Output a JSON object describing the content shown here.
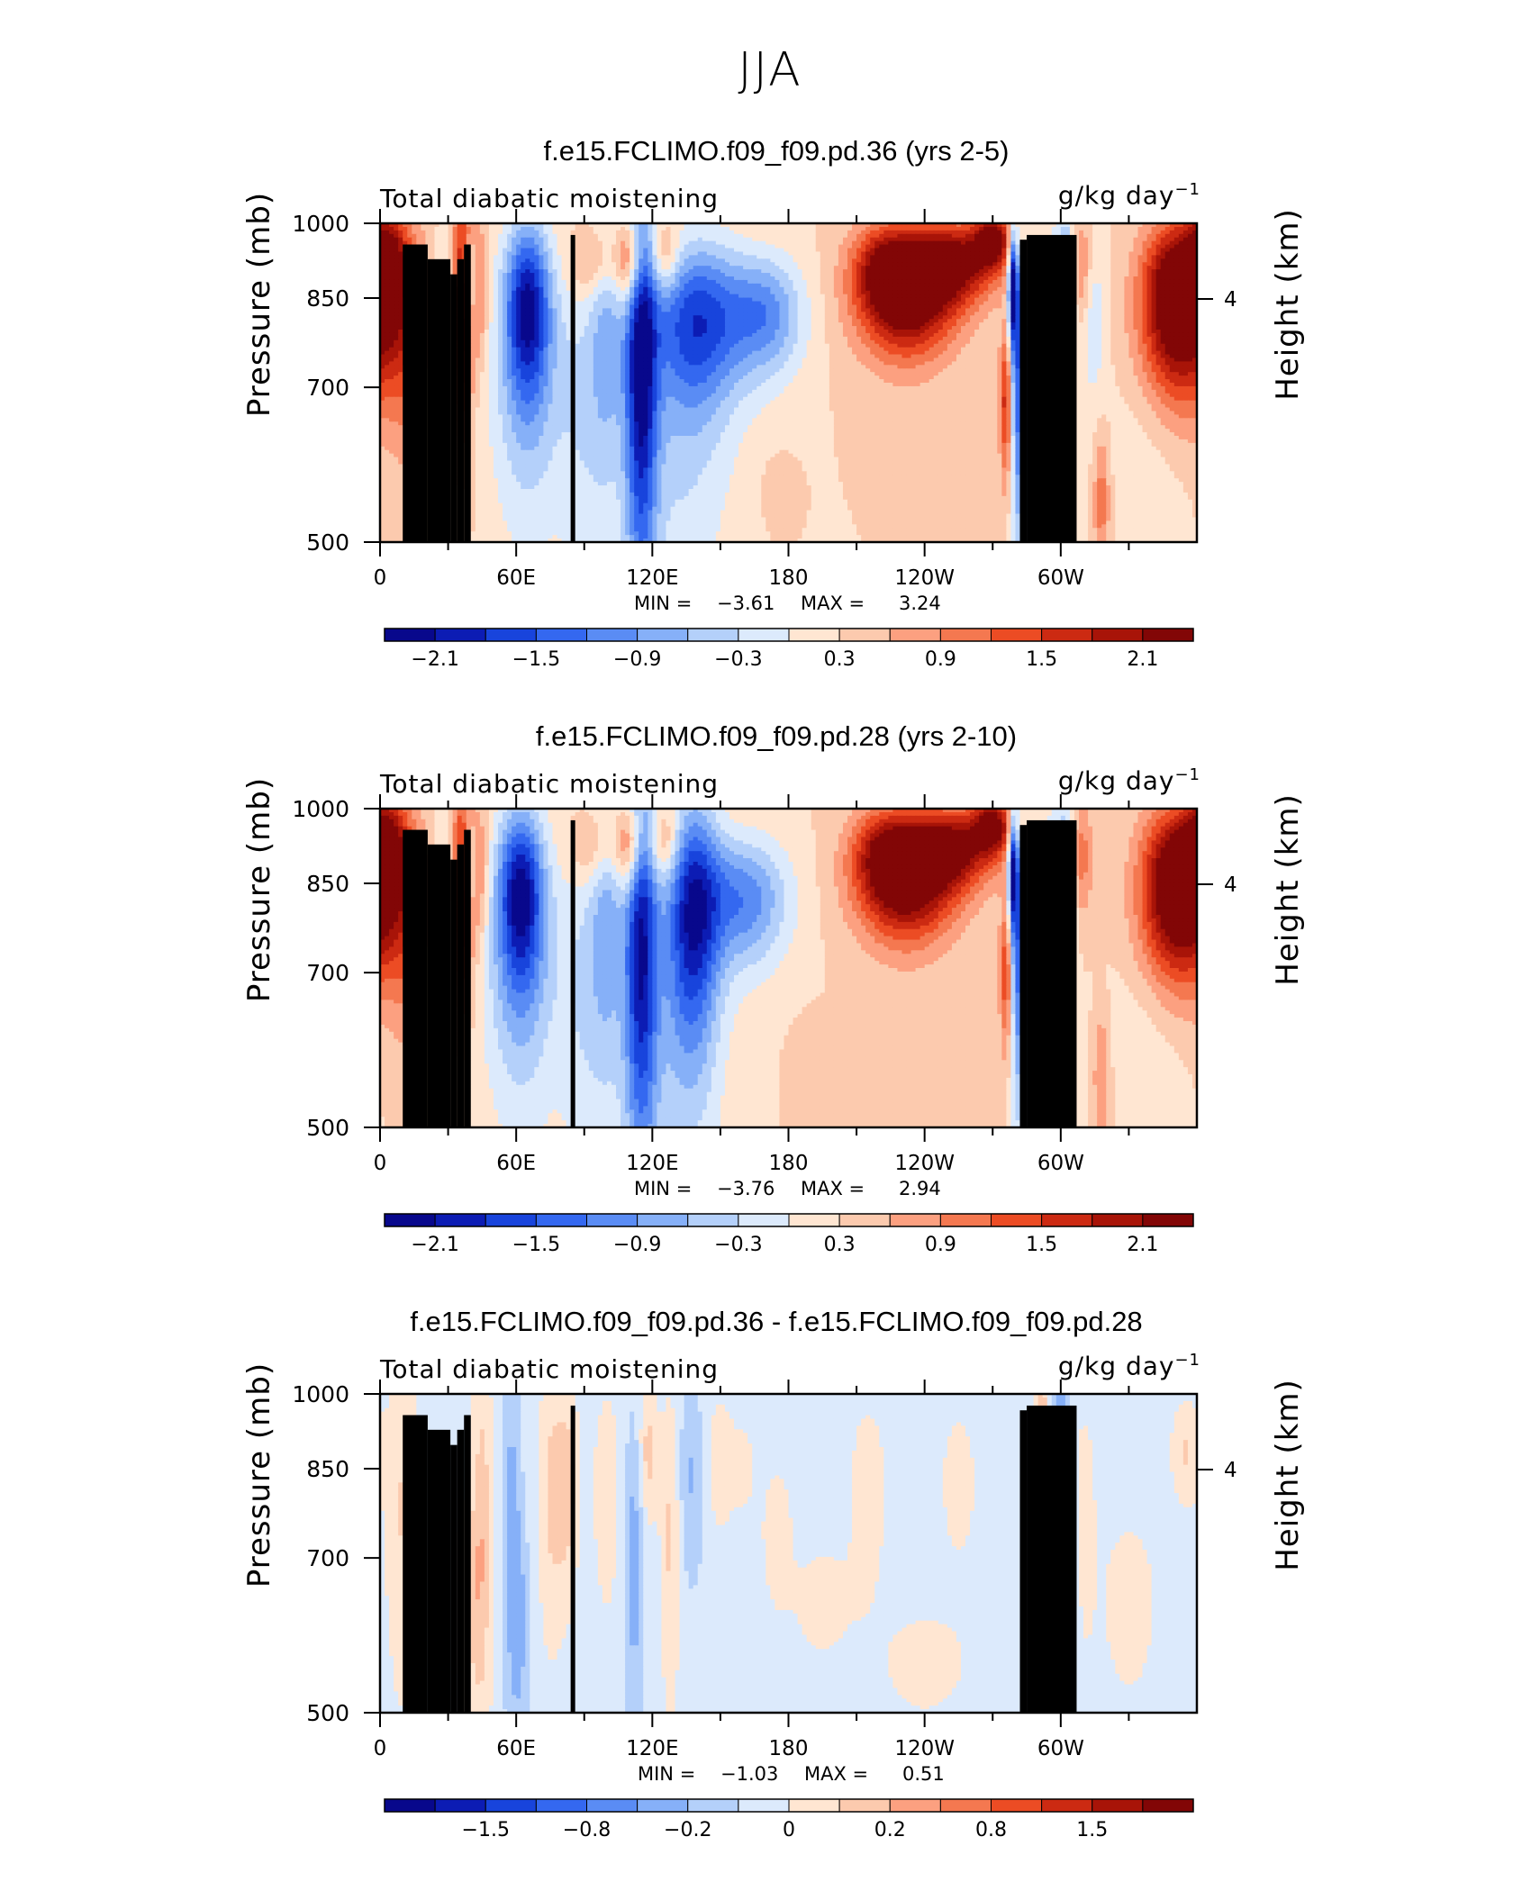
{
  "page_title": "JJA",
  "chart_data": [
    {
      "type": "heatmap",
      "title": "f.e15.FCLIMO.f09_f09.pd.36 (yrs 2-5)",
      "variable": "Total diabatic moistening",
      "units": "g/kg day",
      "units_exponent": "−1",
      "ylabel": "Pressure (mb)",
      "ylabel_right": "Height (km)",
      "x_ticks": [
        "0",
        "60E",
        "120E",
        "180",
        "120W",
        "60W"
      ],
      "y_ticks": [
        "500",
        "700",
        "850",
        "1000"
      ],
      "y_right_ticks": [
        "4"
      ],
      "xlim": [
        0,
        360
      ],
      "ylim": [
        1000,
        500
      ],
      "min_label": "MIN =",
      "min_value": "−3.61",
      "max_label": "MAX =",
      "max_value": "3.24",
      "colorbar_labels": [
        "−2.1",
        "−1.5",
        "−0.9",
        "−0.3",
        "0.3",
        "0.9",
        "1.5",
        "2.1"
      ],
      "blobs": [
        {
          "lon": 13,
          "p": 800,
          "v": 0.75,
          "sx": 7,
          "sy": 140
        },
        {
          "lon": 3,
          "p": 915,
          "v": 1.5,
          "sx": 6,
          "sy": 80
        },
        {
          "lon": 28,
          "p": 740,
          "v": -0.7,
          "sx": 4,
          "sy": 130
        },
        {
          "lon": 36,
          "p": 830,
          "v": 1.9,
          "sx": 3,
          "sy": 150
        },
        {
          "lon": 43,
          "p": 870,
          "v": 1.0,
          "sx": 3,
          "sy": 90
        },
        {
          "lon": 40,
          "p": 880,
          "v": -1.2,
          "sx": 2.5,
          "sy": 60
        },
        {
          "lon": 65,
          "p": 840,
          "v": -2.1,
          "sx": 7,
          "sy": 110
        },
        {
          "lon": 65,
          "p": 700,
          "v": -0.8,
          "sx": 12,
          "sy": 150
        },
        {
          "lon": 90,
          "p": 680,
          "v": -0.5,
          "sx": 8,
          "sy": 170
        },
        {
          "lon": 100,
          "p": 800,
          "v": -0.8,
          "sx": 5,
          "sy": 150
        },
        {
          "lon": 115,
          "p": 750,
          "v": -2.3,
          "sx": 5,
          "sy": 220
        },
        {
          "lon": 110,
          "p": 920,
          "v": 1.3,
          "sx": 4,
          "sy": 60
        },
        {
          "lon": 125,
          "p": 930,
          "v": 0.8,
          "sx": 5,
          "sy": 50
        },
        {
          "lon": 140,
          "p": 810,
          "v": -1.8,
          "sx": 14,
          "sy": 100
        },
        {
          "lon": 170,
          "p": 820,
          "v": -1.3,
          "sx": 12,
          "sy": 75
        },
        {
          "lon": 130,
          "p": 620,
          "v": -0.6,
          "sx": 18,
          "sy": 170
        },
        {
          "lon": 95,
          "p": 920,
          "v": 0.7,
          "sx": 8,
          "sy": 50
        },
        {
          "lon": 175,
          "p": 560,
          "v": 0.2,
          "sx": 5,
          "sy": 30
        },
        {
          "lon": 232,
          "p": 855,
          "v": 2.4,
          "sx": 15,
          "sy": 75
        },
        {
          "lon": 252,
          "p": 920,
          "v": 1.9,
          "sx": 14,
          "sy": 55
        },
        {
          "lon": 270,
          "p": 965,
          "v": 1.8,
          "sx": 6,
          "sy": 40
        },
        {
          "lon": 222,
          "p": 920,
          "v": 1.0,
          "sx": 10,
          "sy": 60
        },
        {
          "lon": 276,
          "p": 680,
          "v": 1.5,
          "sx": 2,
          "sy": 80
        },
        {
          "lon": 282,
          "p": 700,
          "v": -1.8,
          "sx": 3,
          "sy": 150
        },
        {
          "lon": 279,
          "p": 880,
          "v": -2.6,
          "sx": 1.5,
          "sy": 80
        },
        {
          "lon": 295,
          "p": 650,
          "v": -1.0,
          "sx": 4,
          "sy": 200
        },
        {
          "lon": 303,
          "p": 870,
          "v": -1.3,
          "sx": 3,
          "sy": 120
        },
        {
          "lon": 308,
          "p": 900,
          "v": 0.9,
          "sx": 4,
          "sy": 80
        },
        {
          "lon": 318,
          "p": 550,
          "v": 0.8,
          "sx": 2.5,
          "sy": 60
        },
        {
          "lon": 314,
          "p": 820,
          "v": -0.6,
          "sx": 4,
          "sy": 100
        },
        {
          "lon": 352,
          "p": 860,
          "v": 2.7,
          "sx": 11,
          "sy": 95
        },
        {
          "lon": 352,
          "p": 720,
          "v": 0.7,
          "sx": 14,
          "sy": 80
        },
        {
          "lon": 340,
          "p": 640,
          "v": -0.3,
          "sx": 14,
          "sy": 90
        }
      ]
    },
    {
      "type": "heatmap",
      "title": "f.e15.FCLIMO.f09_f09.pd.28 (yrs 2-10)",
      "variable": "Total diabatic moistening",
      "units": "g/kg day",
      "units_exponent": "−1",
      "ylabel": "Pressure (mb)",
      "ylabel_right": "Height (km)",
      "x_ticks": [
        "0",
        "60E",
        "120E",
        "180",
        "120W",
        "60W"
      ],
      "y_ticks": [
        "500",
        "700",
        "850",
        "1000"
      ],
      "y_right_ticks": [
        "4"
      ],
      "xlim": [
        0,
        360
      ],
      "ylim": [
        1000,
        500
      ],
      "min_label": "MIN =",
      "min_value": "−3.76",
      "max_label": "MAX =",
      "max_value": "2.94",
      "colorbar_labels": [
        "−2.1",
        "−1.5",
        "−0.9",
        "−0.3",
        "0.3",
        "0.9",
        "1.5",
        "2.1"
      ],
      "blobs": [
        {
          "lon": 13,
          "p": 800,
          "v": 0.7,
          "sx": 7,
          "sy": 140
        },
        {
          "lon": 3,
          "p": 915,
          "v": 1.5,
          "sx": 6,
          "sy": 80
        },
        {
          "lon": 28,
          "p": 740,
          "v": -0.7,
          "sx": 4,
          "sy": 130
        },
        {
          "lon": 36,
          "p": 830,
          "v": 1.7,
          "sx": 3,
          "sy": 150
        },
        {
          "lon": 43,
          "p": 870,
          "v": 1.0,
          "sx": 3,
          "sy": 90
        },
        {
          "lon": 40,
          "p": 880,
          "v": -1.1,
          "sx": 2.5,
          "sy": 60
        },
        {
          "lon": 62,
          "p": 840,
          "v": -2.1,
          "sx": 7,
          "sy": 110
        },
        {
          "lon": 62,
          "p": 700,
          "v": -0.9,
          "sx": 12,
          "sy": 150
        },
        {
          "lon": 90,
          "p": 680,
          "v": -0.5,
          "sx": 8,
          "sy": 170
        },
        {
          "lon": 100,
          "p": 800,
          "v": -0.8,
          "sx": 5,
          "sy": 150
        },
        {
          "lon": 115,
          "p": 760,
          "v": -2.1,
          "sx": 5,
          "sy": 210
        },
        {
          "lon": 110,
          "p": 920,
          "v": 1.2,
          "sx": 4,
          "sy": 60
        },
        {
          "lon": 125,
          "p": 930,
          "v": 0.8,
          "sx": 5,
          "sy": 50
        },
        {
          "lon": 138,
          "p": 800,
          "v": -2.0,
          "sx": 8,
          "sy": 150
        },
        {
          "lon": 160,
          "p": 820,
          "v": -1.4,
          "sx": 14,
          "sy": 80
        },
        {
          "lon": 125,
          "p": 620,
          "v": -0.6,
          "sx": 18,
          "sy": 170
        },
        {
          "lon": 95,
          "p": 920,
          "v": 0.6,
          "sx": 8,
          "sy": 50
        },
        {
          "lon": 190,
          "p": 560,
          "v": 0.3,
          "sx": 6,
          "sy": 40
        },
        {
          "lon": 232,
          "p": 855,
          "v": 2.3,
          "sx": 15,
          "sy": 75
        },
        {
          "lon": 252,
          "p": 920,
          "v": 1.8,
          "sx": 14,
          "sy": 55
        },
        {
          "lon": 270,
          "p": 965,
          "v": 1.8,
          "sx": 6,
          "sy": 40
        },
        {
          "lon": 222,
          "p": 920,
          "v": 1.0,
          "sx": 10,
          "sy": 60
        },
        {
          "lon": 276,
          "p": 700,
          "v": 1.3,
          "sx": 2,
          "sy": 80
        },
        {
          "lon": 282,
          "p": 720,
          "v": -1.7,
          "sx": 3,
          "sy": 150
        },
        {
          "lon": 279,
          "p": 880,
          "v": -2.4,
          "sx": 1.5,
          "sy": 80
        },
        {
          "lon": 295,
          "p": 660,
          "v": -1.1,
          "sx": 4,
          "sy": 200
        },
        {
          "lon": 303,
          "p": 870,
          "v": -1.2,
          "sx": 3,
          "sy": 120
        },
        {
          "lon": 308,
          "p": 900,
          "v": 0.9,
          "sx": 4,
          "sy": 80
        },
        {
          "lon": 318,
          "p": 560,
          "v": 0.7,
          "sx": 2.5,
          "sy": 60
        },
        {
          "lon": 352,
          "p": 860,
          "v": 2.6,
          "sx": 11,
          "sy": 95
        },
        {
          "lon": 352,
          "p": 730,
          "v": 0.7,
          "sx": 14,
          "sy": 80
        },
        {
          "lon": 340,
          "p": 640,
          "v": -0.3,
          "sx": 14,
          "sy": 90
        }
      ]
    },
    {
      "type": "heatmap",
      "title": "f.e15.FCLIMO.f09_f09.pd.36 - f.e15.FCLIMO.f09_f09.pd.28",
      "variable": "Total diabatic moistening",
      "units": "g/kg day",
      "units_exponent": "−1",
      "ylabel": "Pressure (mb)",
      "ylabel_right": "Height (km)",
      "x_ticks": [
        "0",
        "60E",
        "120E",
        "180",
        "120W",
        "60W"
      ],
      "y_ticks": [
        "500",
        "700",
        "850",
        "1000"
      ],
      "y_right_ticks": [
        "4"
      ],
      "xlim": [
        0,
        360
      ],
      "ylim": [
        1000,
        500
      ],
      "min_label": "MIN =",
      "min_value": "−1.03",
      "max_label": "MAX =",
      "max_value": "0.51",
      "colorbar_labels": [
        "−1.5",
        "−0.8",
        "−0.2",
        "0",
        "0.2",
        "0.8",
        "1.5"
      ],
      "blobs": [
        {
          "lon": 180,
          "p": 750,
          "v": -0.06,
          "sx": 200,
          "sy": 400
        },
        {
          "lon": 10,
          "p": 780,
          "v": 0.15,
          "sx": 5,
          "sy": 160
        },
        {
          "lon": 40,
          "p": 650,
          "v": 0.15,
          "sx": 4,
          "sy": 100
        },
        {
          "lon": 45,
          "p": 760,
          "v": 0.2,
          "sx": 3,
          "sy": 200
        },
        {
          "lon": 58,
          "p": 760,
          "v": -0.2,
          "sx": 3,
          "sy": 200
        },
        {
          "lon": 62,
          "p": 600,
          "v": -0.15,
          "sx": 3,
          "sy": 100
        },
        {
          "lon": 75,
          "p": 800,
          "v": 0.15,
          "sx": 4,
          "sy": 150
        },
        {
          "lon": 82,
          "p": 820,
          "v": 0.2,
          "sx": 4,
          "sy": 120
        },
        {
          "lon": 100,
          "p": 800,
          "v": 0.1,
          "sx": 5,
          "sy": 150
        },
        {
          "lon": 112,
          "p": 700,
          "v": -0.2,
          "sx": 3,
          "sy": 180
        },
        {
          "lon": 118,
          "p": 880,
          "v": 0.2,
          "sx": 3,
          "sy": 90
        },
        {
          "lon": 128,
          "p": 740,
          "v": 0.18,
          "sx": 3,
          "sy": 160
        },
        {
          "lon": 137,
          "p": 840,
          "v": -0.15,
          "sx": 4,
          "sy": 120
        },
        {
          "lon": 150,
          "p": 860,
          "v": 0.15,
          "sx": 4,
          "sy": 80
        },
        {
          "lon": 160,
          "p": 850,
          "v": 0.1,
          "sx": 4,
          "sy": 60
        },
        {
          "lon": 175,
          "p": 740,
          "v": 0.12,
          "sx": 5,
          "sy": 80
        },
        {
          "lon": 195,
          "p": 640,
          "v": 0.1,
          "sx": 10,
          "sy": 60
        },
        {
          "lon": 215,
          "p": 800,
          "v": 0.12,
          "sx": 6,
          "sy": 120
        },
        {
          "lon": 240,
          "p": 560,
          "v": 0.12,
          "sx": 12,
          "sy": 40
        },
        {
          "lon": 255,
          "p": 820,
          "v": 0.1,
          "sx": 6,
          "sy": 100
        },
        {
          "lon": 292,
          "p": 800,
          "v": 0.35,
          "sx": 2.5,
          "sy": 160
        },
        {
          "lon": 300,
          "p": 740,
          "v": -0.45,
          "sx": 3,
          "sy": 200
        },
        {
          "lon": 300,
          "p": 600,
          "v": -0.2,
          "sx": 4,
          "sy": 120
        },
        {
          "lon": 310,
          "p": 760,
          "v": 0.1,
          "sx": 4,
          "sy": 140
        },
        {
          "lon": 330,
          "p": 640,
          "v": 0.1,
          "sx": 8,
          "sy": 80
        },
        {
          "lon": 355,
          "p": 880,
          "v": 0.15,
          "sx": 4,
          "sy": 60
        }
      ]
    }
  ],
  "colors": {
    "colorbar": [
      "#08088c",
      "#0c1cb4",
      "#1844dc",
      "#3468f0",
      "#5a8cf4",
      "#86b0f8",
      "#b4d0fa",
      "#dceafc",
      "#ffe6d2",
      "#fccaae",
      "#fca080",
      "#f47850",
      "#ec4c24",
      "#cc2a12",
      "#a81408",
      "#820606"
    ],
    "topography": "#000000"
  }
}
